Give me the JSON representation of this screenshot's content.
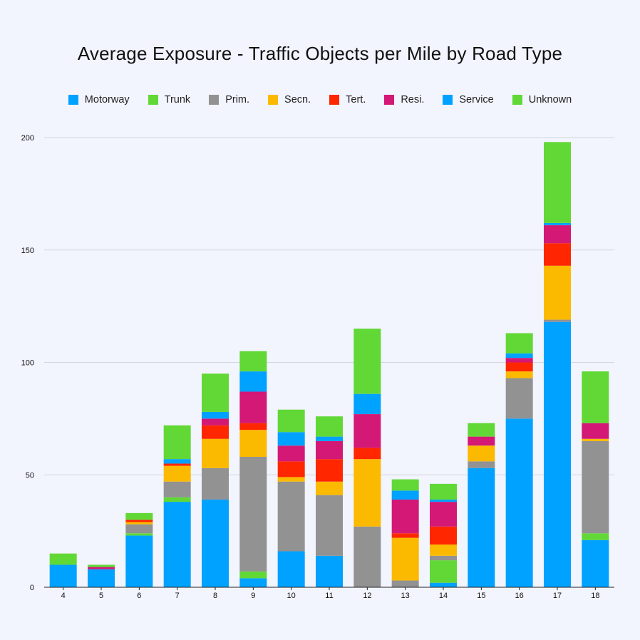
{
  "chart_data": {
    "type": "bar",
    "stacked": true,
    "title": "Average Exposure - Traffic Objects per Mile by Road Type",
    "xlabel": "",
    "ylabel": "",
    "ylim": [
      0,
      200
    ],
    "yticks": [
      0,
      50,
      100,
      150,
      200
    ],
    "grid": true,
    "legend_position": "top",
    "categories": [
      "4",
      "5",
      "6",
      "7",
      "8",
      "9",
      "10",
      "11",
      "12",
      "13",
      "14",
      "15",
      "16",
      "17",
      "18"
    ],
    "series": [
      {
        "name": "Motorway",
        "color": "#00a2ff",
        "values": [
          10,
          8,
          23,
          38,
          39,
          4,
          16,
          14,
          0,
          0,
          2,
          53,
          75,
          118,
          21
        ]
      },
      {
        "name": "Trunk",
        "color": "#61d836",
        "values": [
          0,
          0,
          1,
          2,
          0,
          3,
          0,
          0,
          0,
          0,
          10,
          0,
          0,
          0,
          3
        ]
      },
      {
        "name": "Prim.",
        "color": "#929292",
        "values": [
          0,
          0,
          4,
          7,
          14,
          51,
          31,
          27,
          27,
          3,
          2,
          3,
          18,
          1,
          41
        ]
      },
      {
        "name": "Secn.",
        "color": "#fbb900",
        "values": [
          0,
          0,
          1,
          7,
          13,
          12,
          2,
          6,
          30,
          19,
          5,
          7,
          3,
          24,
          1
        ]
      },
      {
        "name": "Tert.",
        "color": "#ff2600",
        "values": [
          0,
          0,
          1,
          1,
          6,
          3,
          7,
          10,
          5,
          2,
          8,
          0,
          4,
          10,
          0
        ]
      },
      {
        "name": "Resi.",
        "color": "#d31876",
        "values": [
          0,
          1,
          0,
          0,
          3,
          14,
          7,
          8,
          15,
          15,
          11,
          4,
          2,
          8,
          7
        ]
      },
      {
        "name": "Service",
        "color": "#00a2ff",
        "values": [
          0,
          0,
          0,
          2,
          3,
          9,
          6,
          2,
          9,
          4,
          1,
          0,
          2,
          1,
          0
        ]
      },
      {
        "name": "Unknown",
        "color": "#61d836",
        "values": [
          5,
          1,
          3,
          15,
          17,
          9,
          10,
          9,
          29,
          5,
          7,
          6,
          9,
          36,
          23
        ]
      }
    ]
  }
}
